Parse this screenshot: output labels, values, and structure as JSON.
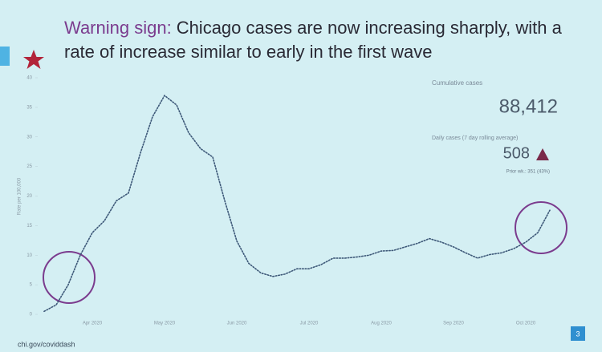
{
  "chart_data": {
    "type": "line",
    "title_lead": "Warning sign:",
    "title_lines": [
      "Chicago cases are now increasing sharply, with a",
      "rate of increase similar to early in the first wave"
    ],
    "y_label": "Rate per 100,000",
    "categories": [
      null,
      null,
      null,
      null,
      "Apr 2020",
      null,
      null,
      null,
      null,
      null,
      "May 2020",
      null,
      null,
      null,
      null,
      null,
      "Jun 2020",
      null,
      null,
      null,
      null,
      null,
      "Jul 2020",
      null,
      null,
      null,
      null,
      null,
      "Aug 2020",
      null,
      null,
      null,
      null,
      null,
      "Sep 2020",
      null,
      null,
      null,
      null,
      null,
      "Oct 2020",
      null,
      null
    ],
    "series": [
      {
        "name": "Daily cases",
        "color": "#3d5878",
        "values": [
          0.5,
          1.6,
          5,
          10,
          13.8,
          15.8,
          19.2,
          20.5,
          27.3,
          33.4,
          37,
          35.4,
          30.7,
          28,
          26.6,
          19.2,
          12.4,
          8.6,
          7,
          6.4,
          6.8,
          7.7,
          7.7,
          8.4,
          9.5,
          9.5,
          9.7,
          10,
          10.7,
          10.8,
          11.4,
          12,
          12.8,
          12.2,
          11.4,
          10.4,
          9.5,
          10.1,
          10.4,
          11.1,
          12.2,
          13.8,
          17.6
        ]
      }
    ],
    "ylim": [
      0,
      40
    ],
    "yticks": [
      0,
      5,
      10,
      15,
      20,
      25,
      30,
      35,
      40
    ],
    "grid": false,
    "stats": {
      "cumulative_label": "Cumulative cases",
      "cumulative_value": "88,412",
      "daily_label": "Daily cases (7 day rolling average)",
      "daily_value": "508",
      "prior": "Prior wk.: 351 (43%)"
    },
    "footer": "chi.gov/coviddash",
    "page": "3"
  }
}
